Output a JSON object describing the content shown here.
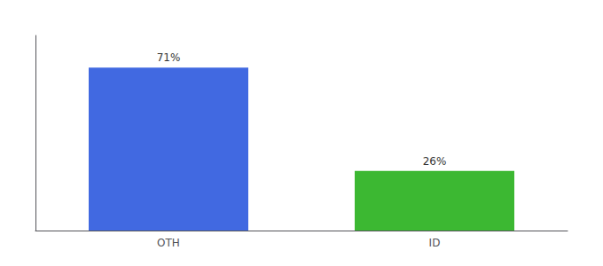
{
  "chart_data": {
    "type": "bar",
    "categories": [
      "OTH",
      "ID"
    ],
    "values": [
      71,
      26
    ],
    "value_labels": [
      "71%",
      "26%"
    ],
    "colors": [
      "#4169e1",
      "#3cb832"
    ],
    "ylim": [
      0,
      85
    ],
    "data_labels": true,
    "tick_labels": "x",
    "grid": false
  }
}
